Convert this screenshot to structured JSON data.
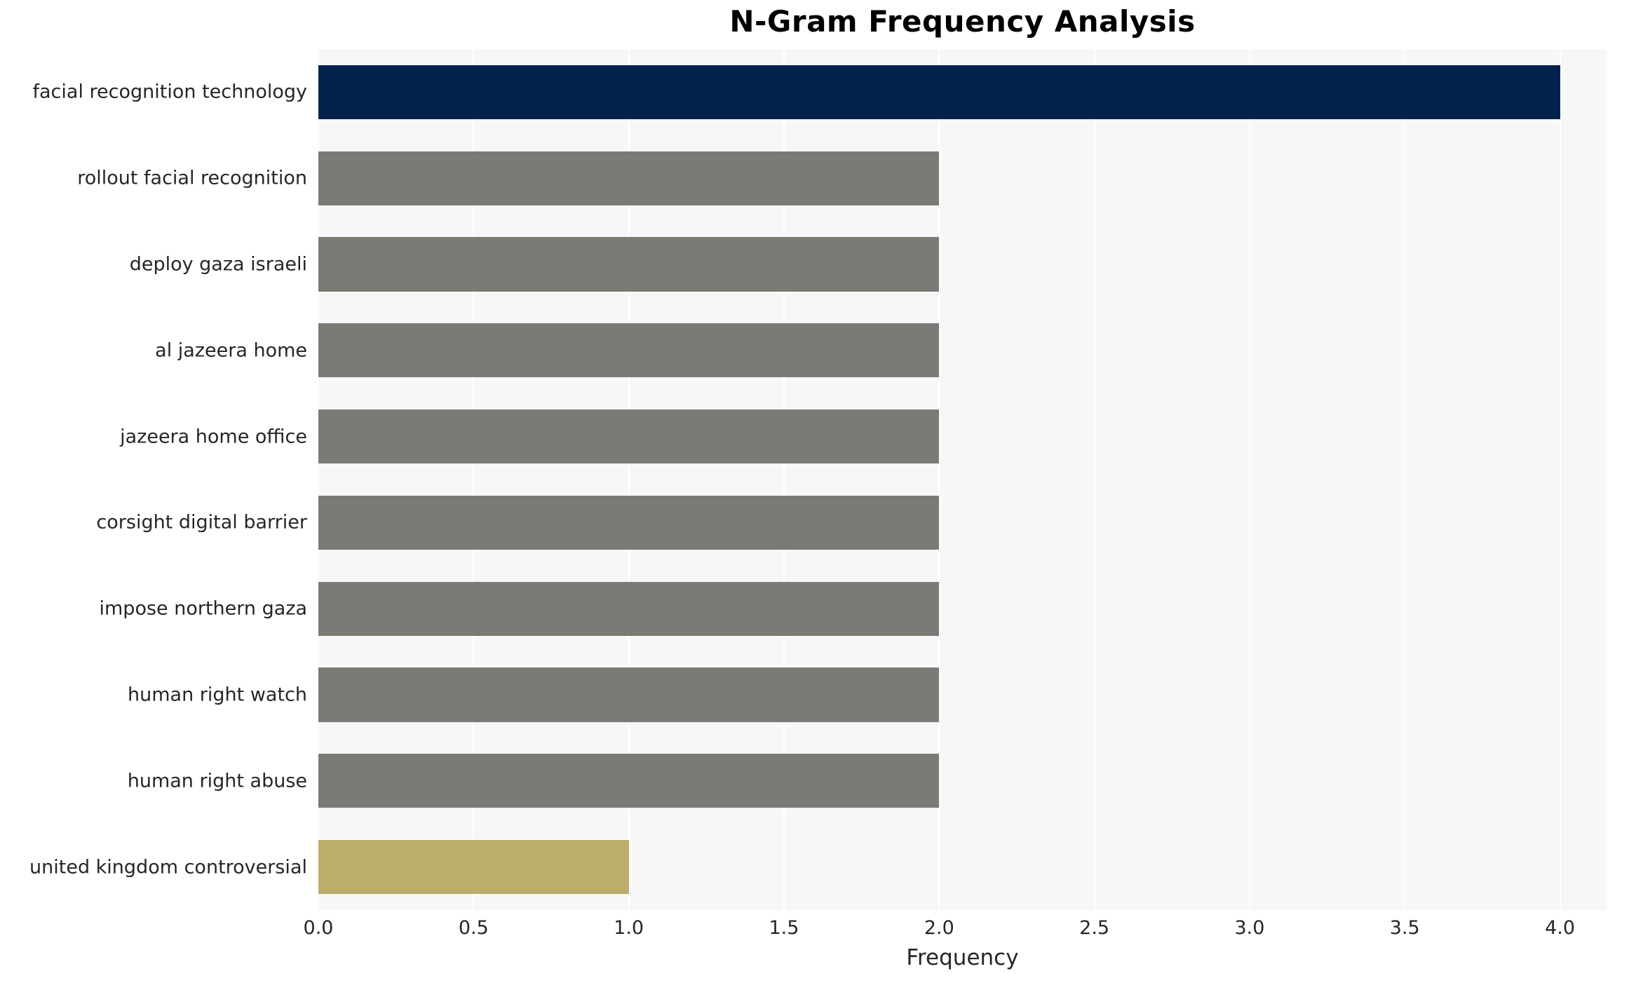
{
  "chart_data": {
    "type": "bar",
    "orientation": "horizontal",
    "title": "N-Gram Frequency Analysis",
    "xlabel": "Frequency",
    "ylabel": "",
    "categories": [
      "facial recognition technology",
      "rollout facial recognition",
      "deploy gaza israeli",
      "al jazeera home",
      "jazeera home office",
      "corsight digital barrier",
      "impose northern gaza",
      "human right watch",
      "human right abuse",
      "united kingdom controversial"
    ],
    "values": [
      4,
      2,
      2,
      2,
      2,
      2,
      2,
      2,
      2,
      1
    ],
    "bar_colors": [
      "#02224d",
      "#7b7a75",
      "#7b7a75",
      "#7b7a75",
      "#7b7a75",
      "#7b7a75",
      "#7b7a75",
      "#7b7a75",
      "#7b7a75",
      "#bcad6d"
    ],
    "xlim": [
      0,
      4.15
    ],
    "xticks": [
      0,
      0.5,
      1,
      1.5,
      2,
      2.5,
      3,
      3.5,
      4
    ],
    "xtick_labels": [
      "0.0",
      "0.5",
      "1.0",
      "1.5",
      "2.0",
      "2.5",
      "3.0",
      "3.5",
      "4.0"
    ],
    "grid": {
      "vertical": true,
      "horizontal": false,
      "color": "#ffffff"
    },
    "panel_background": "#f7f7f7",
    "figure_background": "#ffffff",
    "text_color": "#262626",
    "legend": null
  }
}
